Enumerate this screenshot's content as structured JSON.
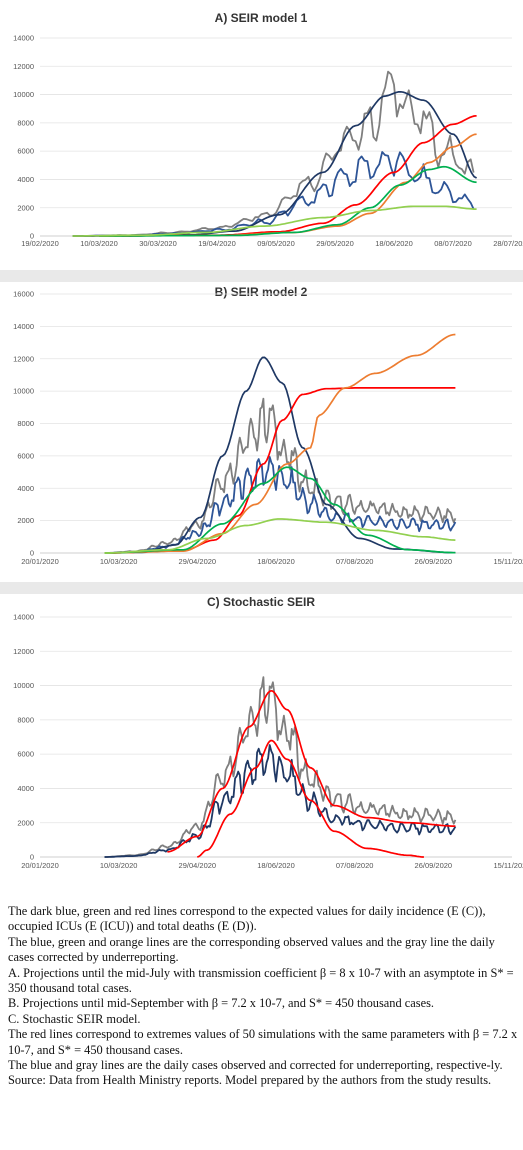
{
  "chart_data": [
    {
      "type": "line",
      "title": "A) SEIR model 1",
      "xlim": [
        "2020-02-19",
        "2020-07-28"
      ],
      "ylim": [
        0,
        14000
      ],
      "y_ticks": [
        0,
        2000,
        4000,
        6000,
        8000,
        10000,
        12000,
        14000
      ],
      "x_ticks": [
        "19/02/2020",
        "10/03/2020",
        "30/03/2020",
        "19/04/2020",
        "09/05/2020",
        "29/05/2020",
        "18/06/2020",
        "08/07/2020",
        "28/07/2020"
      ],
      "grid": "horizontal",
      "series": [
        {
          "color": "#7f7f7f",
          "style": "noisy",
          "points": [
            [
              "2020-03-01",
              0
            ],
            [
              "2020-03-20",
              60
            ],
            [
              "2020-04-05",
              250
            ],
            [
              "2020-04-20",
              600
            ],
            [
              "2020-05-05",
              1500
            ],
            [
              "2020-05-20",
              3800
            ],
            [
              "2020-06-01",
              6500
            ],
            [
              "2020-06-10",
              8000
            ],
            [
              "2020-06-18",
              10500
            ],
            [
              "2020-06-26",
              8400
            ],
            [
              "2020-07-05",
              6000
            ],
            [
              "2020-07-15",
              4500
            ]
          ],
          "amp": 0.2
        },
        {
          "color": "#2e5597",
          "style": "noisy",
          "points": [
            [
              "2020-03-01",
              0
            ],
            [
              "2020-03-20",
              40
            ],
            [
              "2020-04-05",
              180
            ],
            [
              "2020-04-20",
              420
            ],
            [
              "2020-05-05",
              1000
            ],
            [
              "2020-05-20",
              2500
            ],
            [
              "2020-06-01",
              4200
            ],
            [
              "2020-06-10",
              5000
            ],
            [
              "2020-06-18",
              5300
            ],
            [
              "2020-06-26",
              4200
            ],
            [
              "2020-07-05",
              3200
            ],
            [
              "2020-07-15",
              2200
            ]
          ],
          "amp": 0.22
        },
        {
          "color": "#1f3864",
          "style": "smooth",
          "points": [
            [
              "2020-03-01",
              0
            ],
            [
              "2020-03-20",
              10
            ],
            [
              "2020-04-10",
              80
            ],
            [
              "2020-04-25",
              350
            ],
            [
              "2020-05-10",
              1500
            ],
            [
              "2020-05-25",
              4500
            ],
            [
              "2020-06-05",
              7800
            ],
            [
              "2020-06-15",
              9900
            ],
            [
              "2020-06-20",
              10200
            ],
            [
              "2020-06-28",
              9600
            ],
            [
              "2020-07-08",
              7200
            ],
            [
              "2020-07-16",
              4100
            ]
          ]
        },
        {
          "color": "#ff0000",
          "style": "smooth",
          "points": [
            [
              "2020-03-10",
              0
            ],
            [
              "2020-04-20",
              60
            ],
            [
              "2020-05-10",
              300
            ],
            [
              "2020-05-25",
              900
            ],
            [
              "2020-06-05",
              2200
            ],
            [
              "2020-06-18",
              4500
            ],
            [
              "2020-06-28",
              6600
            ],
            [
              "2020-07-08",
              7900
            ],
            [
              "2020-07-16",
              8500
            ]
          ]
        },
        {
          "color": "#ed7d31",
          "style": "smooth",
          "points": [
            [
              "2020-03-10",
              0
            ],
            [
              "2020-04-20",
              40
            ],
            [
              "2020-05-15",
              250
            ],
            [
              "2020-05-30",
              700
            ],
            [
              "2020-06-10",
              1600
            ],
            [
              "2020-06-22",
              3800
            ],
            [
              "2020-06-30",
              5200
            ],
            [
              "2020-07-08",
              6300
            ],
            [
              "2020-07-16",
              7200
            ]
          ]
        },
        {
          "color": "#00b050",
          "style": "smooth",
          "points": [
            [
              "2020-03-10",
              0
            ],
            [
              "2020-04-25",
              40
            ],
            [
              "2020-05-15",
              250
            ],
            [
              "2020-05-30",
              800
            ],
            [
              "2020-06-10",
              2000
            ],
            [
              "2020-06-20",
              3600
            ],
            [
              "2020-06-30",
              4700
            ],
            [
              "2020-07-05",
              4900
            ],
            [
              "2020-07-16",
              3800
            ]
          ]
        },
        {
          "color": "#92d050",
          "style": "smooth",
          "points": [
            [
              "2020-03-01",
              0
            ],
            [
              "2020-03-25",
              60
            ],
            [
              "2020-04-15",
              250
            ],
            [
              "2020-05-05",
              700
            ],
            [
              "2020-05-25",
              1300
            ],
            [
              "2020-06-10",
              1800
            ],
            [
              "2020-06-25",
              2100
            ],
            [
              "2020-07-05",
              2100
            ],
            [
              "2020-07-16",
              1900
            ]
          ]
        }
      ]
    },
    {
      "type": "line",
      "title": "B) SEIR model 2",
      "xlim": [
        "2020-01-20",
        "2020-11-15"
      ],
      "ylim": [
        0,
        16000
      ],
      "y_ticks": [
        0,
        2000,
        4000,
        6000,
        8000,
        10000,
        12000,
        14000,
        16000
      ],
      "x_ticks": [
        "20/01/2020",
        "10/03/2020",
        "29/04/2020",
        "18/06/2020",
        "07/08/2020",
        "26/09/2020",
        "15/11/2020"
      ],
      "grid": "horizontal",
      "series": [
        {
          "color": "#7f7f7f",
          "style": "noisy",
          "points": [
            [
              "2020-03-01",
              0
            ],
            [
              "2020-03-20",
              100
            ],
            [
              "2020-04-10",
              600
            ],
            [
              "2020-04-29",
              1800
            ],
            [
              "2020-05-15",
              4500
            ],
            [
              "2020-06-01",
              7000
            ],
            [
              "2020-06-12",
              8500
            ],
            [
              "2020-06-25",
              6000
            ],
            [
              "2020-07-10",
              4000
            ],
            [
              "2020-07-25",
              3100
            ],
            [
              "2020-08-15",
              2800
            ],
            [
              "2020-09-10",
              2500
            ],
            [
              "2020-10-10",
              2300
            ]
          ],
          "amp": 0.2
        },
        {
          "color": "#2e5597",
          "style": "noisy",
          "points": [
            [
              "2020-03-01",
              0
            ],
            [
              "2020-03-20",
              60
            ],
            [
              "2020-04-10",
              400
            ],
            [
              "2020-04-29",
              1200
            ],
            [
              "2020-05-15",
              3000
            ],
            [
              "2020-06-01",
              4600
            ],
            [
              "2020-06-12",
              5200
            ],
            [
              "2020-06-25",
              4400
            ],
            [
              "2020-07-10",
              3000
            ],
            [
              "2020-07-25",
              2200
            ],
            [
              "2020-08-15",
              2000
            ],
            [
              "2020-09-10",
              1800
            ],
            [
              "2020-10-10",
              1700
            ]
          ],
          "amp": 0.22
        },
        {
          "color": "#1f3864",
          "style": "smooth",
          "points": [
            [
              "2020-03-01",
              0
            ],
            [
              "2020-03-25",
              40
            ],
            [
              "2020-04-15",
              500
            ],
            [
              "2020-05-01",
              2200
            ],
            [
              "2020-05-15",
              6000
            ],
            [
              "2020-05-30",
              10000
            ],
            [
              "2020-06-10",
              12100
            ],
            [
              "2020-06-22",
              10500
            ],
            [
              "2020-07-05",
              6500
            ],
            [
              "2020-07-20",
              3000
            ],
            [
              "2020-08-10",
              900
            ],
            [
              "2020-09-01",
              250
            ],
            [
              "2020-10-10",
              20
            ]
          ]
        },
        {
          "color": "#ff0000",
          "style": "smooth",
          "points": [
            [
              "2020-03-01",
              0
            ],
            [
              "2020-04-20",
              150
            ],
            [
              "2020-05-10",
              800
            ],
            [
              "2020-05-25",
              2300
            ],
            [
              "2020-06-10",
              5500
            ],
            [
              "2020-06-22",
              8200
            ],
            [
              "2020-07-05",
              9800
            ],
            [
              "2020-07-20",
              10150
            ],
            [
              "2020-08-10",
              10200
            ],
            [
              "2020-10-10",
              10200
            ]
          ]
        },
        {
          "color": "#ed7d31",
          "style": "smooth",
          "points": [
            [
              "2020-03-01",
              0
            ],
            [
              "2020-04-20",
              120
            ],
            [
              "2020-05-15",
              1200
            ],
            [
              "2020-06-05",
              3000
            ],
            [
              "2020-06-25",
              5500
            ],
            [
              "2020-07-10",
              6500
            ],
            [
              "2020-07-15",
              8500
            ],
            [
              "2020-08-01",
              10200
            ],
            [
              "2020-08-20",
              11100
            ],
            [
              "2020-09-15",
              12200
            ],
            [
              "2020-10-10",
              13500
            ]
          ]
        },
        {
          "color": "#00b050",
          "style": "smooth",
          "points": [
            [
              "2020-03-01",
              0
            ],
            [
              "2020-04-20",
              200
            ],
            [
              "2020-05-15",
              1800
            ],
            [
              "2020-06-10",
              4300
            ],
            [
              "2020-06-25",
              5300
            ],
            [
              "2020-07-10",
              4600
            ],
            [
              "2020-07-25",
              3000
            ],
            [
              "2020-08-15",
              1100
            ],
            [
              "2020-09-10",
              200
            ],
            [
              "2020-10-10",
              20
            ]
          ]
        },
        {
          "color": "#92d050",
          "style": "smooth",
          "points": [
            [
              "2020-03-01",
              0
            ],
            [
              "2020-04-10",
              200
            ],
            [
              "2020-05-05",
              900
            ],
            [
              "2020-05-30",
              1700
            ],
            [
              "2020-06-20",
              2100
            ],
            [
              "2020-07-20",
              1900
            ],
            [
              "2020-08-20",
              1400
            ],
            [
              "2020-09-20",
              1000
            ],
            [
              "2020-10-10",
              800
            ]
          ]
        }
      ]
    },
    {
      "type": "line",
      "title": "C) Stochastic SEIR",
      "xlim": [
        "2020-01-20",
        "2020-11-15"
      ],
      "ylim": [
        0,
        14000
      ],
      "y_ticks": [
        0,
        2000,
        4000,
        6000,
        8000,
        10000,
        12000,
        14000
      ],
      "x_ticks": [
        "20/01/2020",
        "10/03/2020",
        "29/04/2020",
        "18/06/2020",
        "07/08/2020",
        "26/09/2020",
        "15/11/2020"
      ],
      "grid": "horizontal",
      "series": [
        {
          "color": "#7f7f7f",
          "style": "noisy",
          "points": [
            [
              "2020-03-01",
              0
            ],
            [
              "2020-03-20",
              100
            ],
            [
              "2020-04-10",
              600
            ],
            [
              "2020-04-29",
              1800
            ],
            [
              "2020-05-15",
              4800
            ],
            [
              "2020-06-01",
              7500
            ],
            [
              "2020-06-12",
              9500
            ],
            [
              "2020-06-25",
              7200
            ],
            [
              "2020-07-10",
              4500
            ],
            [
              "2020-07-25",
              3300
            ],
            [
              "2020-08-15",
              2800
            ],
            [
              "2020-09-10",
              2500
            ],
            [
              "2020-10-10",
              2300
            ]
          ],
          "amp": 0.18
        },
        {
          "color": "#1f3864",
          "style": "noisy",
          "points": [
            [
              "2020-03-01",
              0
            ],
            [
              "2020-03-20",
              60
            ],
            [
              "2020-04-10",
              400
            ],
            [
              "2020-04-29",
              1200
            ],
            [
              "2020-05-15",
              3200
            ],
            [
              "2020-06-01",
              5000
            ],
            [
              "2020-06-12",
              5800
            ],
            [
              "2020-06-25",
              4800
            ],
            [
              "2020-07-10",
              3200
            ],
            [
              "2020-07-25",
              2200
            ],
            [
              "2020-08-15",
              1900
            ],
            [
              "2020-09-10",
              1700
            ],
            [
              "2020-10-10",
              1600
            ]
          ],
          "amp": 0.2
        },
        {
          "color": "#ff0000",
          "style": "smooth",
          "points": [
            [
              "2020-04-10",
              300
            ],
            [
              "2020-04-29",
              1200
            ],
            [
              "2020-05-15",
              4000
            ],
            [
              "2020-06-01",
              7600
            ],
            [
              "2020-06-15",
              9700
            ],
            [
              "2020-06-25",
              8600
            ],
            [
              "2020-07-10",
              5200
            ],
            [
              "2020-07-25",
              3000
            ],
            [
              "2020-08-15",
              2300
            ],
            [
              "2020-09-10",
              2000
            ],
            [
              "2020-10-10",
              1800
            ]
          ]
        },
        {
          "color": "#ff0000",
          "style": "smooth",
          "points": [
            [
              "2020-04-29",
              0
            ],
            [
              "2020-05-05",
              400
            ],
            [
              "2020-05-20",
              2500
            ],
            [
              "2020-06-05",
              5200
            ],
            [
              "2020-06-15",
              6800
            ],
            [
              "2020-06-25",
              5700
            ],
            [
              "2020-07-10",
              3300
            ],
            [
              "2020-07-25",
              1500
            ],
            [
              "2020-08-15",
              500
            ],
            [
              "2020-09-10",
              100
            ],
            [
              "2020-09-20",
              0
            ]
          ]
        }
      ]
    }
  ],
  "caption": {
    "lines": [
      "The dark blue, green and red lines correspond to the expected values for daily incidence (E (C)), occupied ICUs (E (ICU)) and total deaths (E (D)).",
      "The blue, green and orange lines are the corresponding observed values and the gray line the daily cases corrected by underreporting.",
      "A. Projections until the mid-July with transmission coefficient β = 8 x 10-7 with an asymptote in S* = 350 thousand total cases.",
      "B. Projections until mid-September with β = 7.2 x 10-7, and S* = 450 thousand cases.",
      "C. Stochastic SEIR model.",
      "The red lines correspond to extremes values of 50 simulations with the same parameters with β = 7.2 x 10-7, and S* = 450 thousand cases.",
      "The blue and gray lines are the daily cases observed and corrected for underreporting, respective-ly.",
      "Source: Data from Health Ministry reports. Model prepared by the authors from the study results."
    ]
  }
}
